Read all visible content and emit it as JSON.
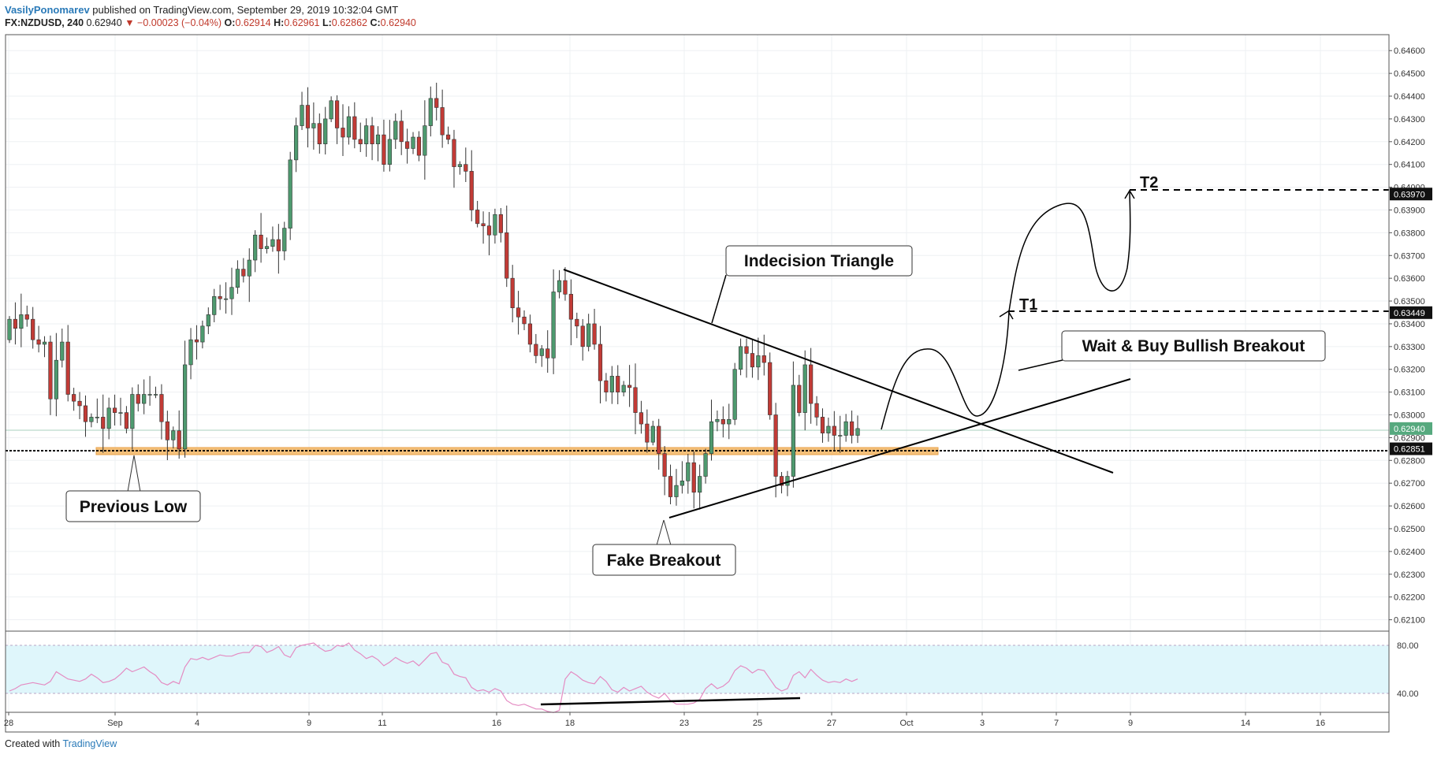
{
  "header": {
    "author": "VasilyPonomarev",
    "published": "published on TradingView.com, September 29, 2019 10:32:04 GMT",
    "symbol": "FX:NZDUSD, 240",
    "last": "0.62940",
    "change": "▼ −0.00023 (−0.04%)",
    "o_label": "O:",
    "o": "0.62914",
    "h_label": "H:",
    "h": "0.62961",
    "l_label": "L:",
    "l": "0.62862",
    "c_label": "C:",
    "c": "0.62940"
  },
  "footer": {
    "created": "Created with",
    "brand": "TradingView"
  },
  "colors": {
    "up": "#4e9a6f",
    "down": "#c23b36",
    "grid": "#eef0f3",
    "zone": "#f5c07a",
    "rsi_band": "#dff6fb",
    "rsi_line": "#e48bc2"
  },
  "chart_data": {
    "type": "candlestick",
    "symbol": "FX:NZDUSD",
    "timeframe": "240",
    "ylim": [
      0.6205,
      0.6467
    ],
    "y_ticks": [
      "0.64600",
      "0.64500",
      "0.64400",
      "0.64300",
      "0.64200",
      "0.64100",
      "0.64000",
      "0.63900",
      "0.63800",
      "0.63700",
      "0.63600",
      "0.63500",
      "0.63400",
      "0.63300",
      "0.63200",
      "0.63100",
      "0.63000",
      "0.62900",
      "0.62800",
      "0.62700",
      "0.62600",
      "0.62500",
      "0.62400",
      "0.62300",
      "0.62200",
      "0.62100"
    ],
    "x_ticks": [
      "28",
      "Sep",
      "4",
      "9",
      "11",
      "16",
      "18",
      "23",
      "25",
      "27",
      "Oct",
      "3",
      "7",
      "9",
      "14",
      "16"
    ],
    "price_labels": [
      {
        "value": "0.63970",
        "level": 0.6397,
        "style": "dark"
      },
      {
        "value": "0.63449",
        "level": 0.63449,
        "style": "dark"
      },
      {
        "value": "0.62940",
        "level": 0.6294,
        "style": "green"
      },
      {
        "value": "0.62851",
        "level": 0.62851,
        "style": "dark"
      }
    ],
    "annotations": {
      "triangle": "Indecision Triangle",
      "wait": "Wait & Buy Bullish Breakout",
      "prev_low": "Previous Low",
      "fake": "Fake Breakout",
      "t1": "T1",
      "t2": "T2"
    },
    "levels": {
      "t1": 0.63449,
      "t2": 0.6397,
      "previous_low": 0.62851
    },
    "support_zone": [
      0.62835,
      0.6287
    ],
    "closes": [
      0.6342,
      0.6338,
      0.6344,
      0.6342,
      0.6333,
      0.6331,
      0.6332,
      0.6307,
      0.6324,
      0.6332,
      0.6309,
      0.6306,
      0.6304,
      0.6297,
      0.6299,
      0.6299,
      0.6294,
      0.6303,
      0.6301,
      0.6301,
      0.6294,
      0.6309,
      0.6305,
      0.6309,
      0.6309,
      0.6309,
      0.6297,
      0.6289,
      0.6293,
      0.6285,
      0.6322,
      0.6333,
      0.6332,
      0.6339,
      0.6344,
      0.6352,
      0.6351,
      0.6351,
      0.6356,
      0.6364,
      0.6361,
      0.6368,
      0.6379,
      0.6373,
      0.6374,
      0.6377,
      0.6372,
      0.6382,
      0.6412,
      0.6427,
      0.6436,
      0.6426,
      0.6428,
      0.6419,
      0.643,
      0.6438,
      0.6426,
      0.6422,
      0.6431,
      0.6421,
      0.6419,
      0.6427,
      0.6419,
      0.6423,
      0.641,
      0.6421,
      0.6429,
      0.642,
      0.6417,
      0.6422,
      0.6414,
      0.6427,
      0.6439,
      0.6435,
      0.6423,
      0.6421,
      0.6409,
      0.641,
      0.6407,
      0.639,
      0.6384,
      0.6383,
      0.6379,
      0.6388,
      0.638,
      0.636,
      0.6347,
      0.6343,
      0.634,
      0.6331,
      0.6326,
      0.6329,
      0.6325,
      0.6354,
      0.6359,
      0.6353,
      0.6342,
      0.6339,
      0.633,
      0.634,
      0.6331,
      0.6315,
      0.631,
      0.6317,
      0.631,
      0.6313,
      0.6312,
      0.6301,
      0.6296,
      0.6288,
      0.6295,
      0.6283,
      0.6273,
      0.6264,
      0.6269,
      0.6271,
      0.6279,
      0.6266,
      0.6273,
      0.6283,
      0.6297,
      0.6298,
      0.6296,
      0.6298,
      0.632,
      0.633,
      0.6327,
      0.6321,
      0.6326,
      0.6323,
      0.63,
      0.6273,
      0.6269,
      0.6273,
      0.6313,
      0.6301,
      0.6322,
      0.6305,
      0.6299,
      0.6292,
      0.6295,
      0.6291,
      0.6291,
      0.6297,
      0.6291,
      0.6294
    ],
    "rsi": {
      "levels": [
        80,
        40
      ],
      "y_ticks": [
        "80.00",
        "40.00"
      ],
      "values": [
        42,
        44,
        47,
        48,
        49,
        48,
        47,
        50,
        58,
        55,
        52,
        51,
        50,
        52,
        56,
        53,
        49,
        50,
        52,
        56,
        61,
        58,
        60,
        62,
        58,
        55,
        49,
        47,
        50,
        48,
        62,
        69,
        68,
        70,
        68,
        70,
        72,
        71,
        71,
        73,
        74,
        74,
        80,
        79,
        74,
        76,
        79,
        72,
        70,
        78,
        80,
        81,
        82,
        78,
        75,
        76,
        80,
        79,
        82,
        76,
        73,
        69,
        71,
        68,
        63,
        66,
        70,
        67,
        65,
        67,
        63,
        68,
        73,
        74,
        66,
        64,
        56,
        54,
        53,
        45,
        42,
        43,
        41,
        44,
        42,
        34,
        31,
        30,
        31,
        29,
        27,
        27,
        25,
        24,
        26,
        52,
        58,
        55,
        51,
        49,
        48,
        54,
        50,
        43,
        41,
        45,
        42,
        44,
        46,
        41,
        38,
        36,
        40,
        34,
        31,
        31,
        31,
        32,
        35,
        44,
        48,
        44,
        46,
        50,
        59,
        63,
        61,
        57,
        60,
        59,
        52,
        45,
        42,
        44,
        55,
        58,
        53,
        60,
        55,
        51,
        49,
        50,
        49,
        52,
        50,
        52
      ]
    }
  }
}
